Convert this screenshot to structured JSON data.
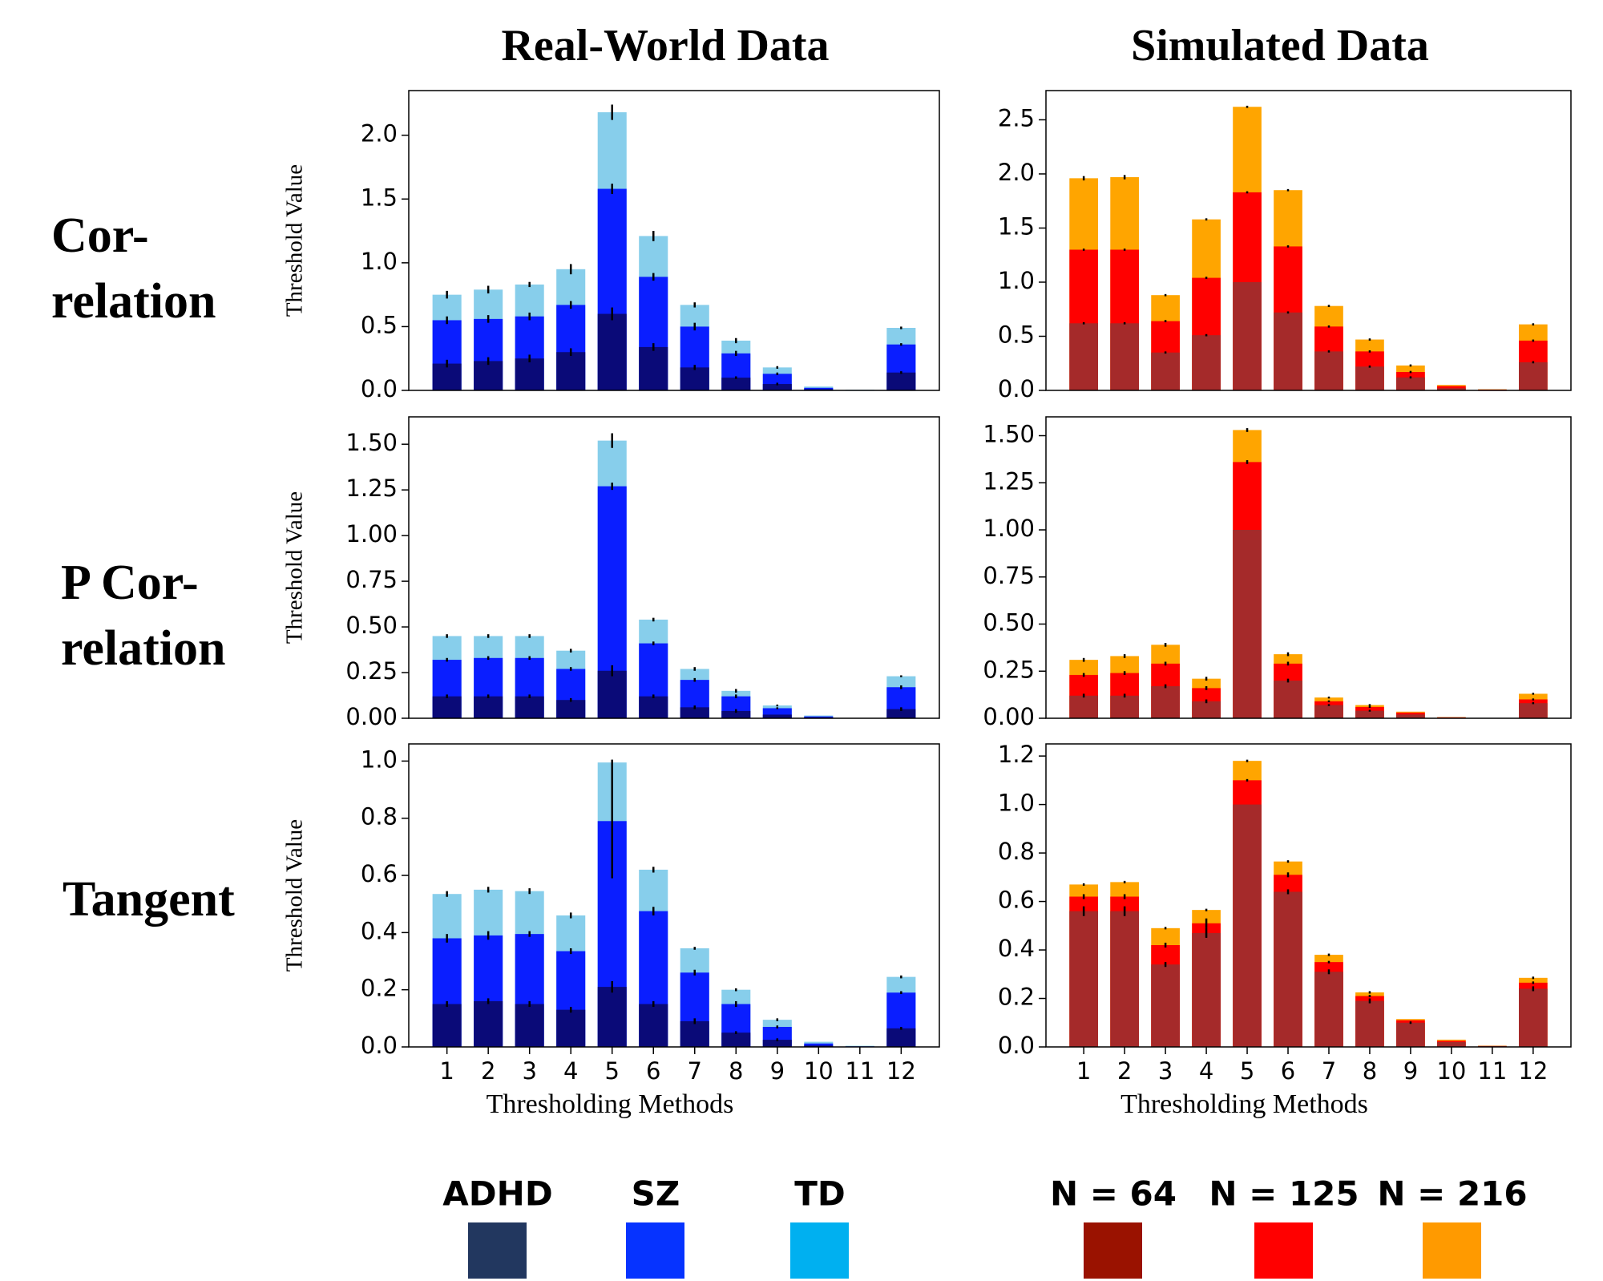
{
  "titles": [
    "Real-World Data",
    "Simulated Data"
  ],
  "row_labels": [
    [
      "Cor-",
      "relation"
    ],
    [
      "P Cor-",
      "relation"
    ],
    [
      "Tangent"
    ]
  ],
  "legends": [
    {
      "items": [
        {
          "name": "ADHD",
          "color": "#22375f"
        },
        {
          "name": "SZ",
          "color": "#0633ff"
        },
        {
          "name": "TD",
          "color": "#00b0f0"
        }
      ]
    },
    {
      "items": [
        {
          "name": "N = 64",
          "color": "#9a1200"
        },
        {
          "name": "N = 125",
          "color": "#ff0000"
        },
        {
          "name": "N = 216",
          "color": "#ff9a00"
        }
      ]
    }
  ],
  "chart_data": [
    {
      "type": "bar",
      "ylabel": "Threshold Value",
      "ylim": [
        0,
        2.35
      ],
      "yticks": [
        {
          "value": 0,
          "label": "0.0"
        },
        0.5,
        {
          "value": 1,
          "label": "1.0"
        },
        1.5,
        {
          "value": 2,
          "label": "2.0"
        }
      ],
      "series": [
        {
          "color": "#0a0a78",
          "values": [
            0.21,
            0.23,
            0.25,
            0.3,
            0.6,
            0.34,
            0.18,
            0.1,
            0.05,
            0.01,
            0,
            0.14
          ],
          "errors": [
            0.03,
            0.03,
            0.03,
            0.03,
            0.05,
            0.03,
            0.02,
            0.01,
            0.01,
            0,
            0,
            0.01
          ]
        },
        {
          "color": "#0a1eff",
          "values": [
            0.55,
            0.56,
            0.58,
            0.67,
            1.58,
            0.89,
            0.5,
            0.29,
            0.13,
            0.02,
            0,
            0.36
          ],
          "errors": [
            0.03,
            0.03,
            0.03,
            0.03,
            0.04,
            0.03,
            0.03,
            0.02,
            0.01,
            0,
            0,
            0.01
          ]
        },
        {
          "color": "#87ceeb",
          "values": [
            0.75,
            0.79,
            0.83,
            0.95,
            2.18,
            1.21,
            0.67,
            0.39,
            0.18,
            0.03,
            0.005,
            0.49
          ],
          "errors": [
            0.03,
            0.03,
            0.02,
            0.04,
            0.06,
            0.04,
            0.02,
            0.02,
            0.01,
            0,
            0,
            0.01
          ]
        }
      ]
    },
    {
      "type": "bar",
      "ylim": [
        0,
        2.77
      ],
      "yticks": [
        {
          "value": 0,
          "label": "0.0"
        },
        0.5,
        {
          "value": 1,
          "label": "1.0"
        },
        1.5,
        {
          "value": 2,
          "label": "2.0"
        },
        2.5
      ],
      "series": [
        {
          "color": "#a52a2a",
          "values": [
            0.62,
            0.62,
            0.35,
            0.51,
            1.0,
            0.72,
            0.36,
            0.22,
            0.12,
            0.02,
            0.005,
            0.26
          ],
          "errors": [
            0.01,
            0.01,
            0.01,
            0.01,
            0,
            0.01,
            0.01,
            0.01,
            0.01,
            0,
            0,
            0.01
          ]
        },
        {
          "color": "#ff0000",
          "values": [
            1.3,
            1.3,
            0.64,
            1.04,
            1.83,
            1.33,
            0.59,
            0.36,
            0.17,
            0.04,
            0.008,
            0.46
          ],
          "errors": [
            0.01,
            0.01,
            0.01,
            0.01,
            0.01,
            0.01,
            0.01,
            0.01,
            0.01,
            0,
            0,
            0.01
          ]
        },
        {
          "color": "#ffa500",
          "values": [
            1.96,
            1.97,
            0.88,
            1.58,
            2.62,
            1.85,
            0.78,
            0.47,
            0.23,
            0.05,
            0.01,
            0.61
          ],
          "errors": [
            0.02,
            0.02,
            0.01,
            0.01,
            0.01,
            0.01,
            0.01,
            0.01,
            0.01,
            0,
            0,
            0.01
          ]
        }
      ]
    },
    {
      "type": "bar",
      "ylabel": "Threshold Value",
      "ylim": [
        0,
        1.65
      ],
      "yticks": [
        {
          "value": 0,
          "label": "0.00"
        },
        0.25,
        {
          "value": 0.5,
          "label": "0.50"
        },
        0.75,
        {
          "value": 1,
          "label": "1.00"
        },
        1.25,
        {
          "value": 1.5,
          "label": "1.50"
        }
      ],
      "series": [
        {
          "color": "#0a0a78",
          "values": [
            0.12,
            0.12,
            0.12,
            0.1,
            0.26,
            0.12,
            0.06,
            0.04,
            0.02,
            0.005,
            0,
            0.05
          ],
          "errors": [
            0.01,
            0.01,
            0.01,
            0.01,
            0.03,
            0.01,
            0.01,
            0.01,
            0,
            0,
            0,
            0.01
          ]
        },
        {
          "color": "#0a1eff",
          "values": [
            0.32,
            0.33,
            0.33,
            0.27,
            1.27,
            0.41,
            0.21,
            0.12,
            0.055,
            0.01,
            0,
            0.17
          ],
          "errors": [
            0.01,
            0.01,
            0.01,
            0.01,
            0.02,
            0.01,
            0.01,
            0.01,
            0.005,
            0,
            0,
            0.01
          ]
        },
        {
          "color": "#87ceeb",
          "values": [
            0.45,
            0.45,
            0.45,
            0.37,
            1.52,
            0.54,
            0.27,
            0.15,
            0.07,
            0.015,
            0.002,
            0.23
          ],
          "errors": [
            0.01,
            0.01,
            0.01,
            0.01,
            0.04,
            0.01,
            0.01,
            0.01,
            0.005,
            0,
            0,
            0.005
          ]
        }
      ]
    },
    {
      "type": "bar",
      "ylim": [
        0,
        1.6
      ],
      "yticks": [
        {
          "value": 0,
          "label": "0.00"
        },
        0.25,
        {
          "value": 0.5,
          "label": "0.50"
        },
        0.75,
        {
          "value": 1,
          "label": "1.00"
        },
        1.25,
        {
          "value": 1.5,
          "label": "1.50"
        }
      ],
      "series": [
        {
          "color": "#a52a2a",
          "values": [
            0.12,
            0.12,
            0.17,
            0.09,
            1.0,
            0.2,
            0.07,
            0.04,
            0.02,
            0.003,
            0,
            0.08
          ],
          "errors": [
            0.01,
            0.01,
            0.01,
            0.01,
            0,
            0.01,
            0.005,
            0.005,
            0,
            0,
            0,
            0.005
          ]
        },
        {
          "color": "#ff0000",
          "values": [
            0.23,
            0.24,
            0.29,
            0.16,
            1.36,
            0.29,
            0.09,
            0.06,
            0.03,
            0.005,
            0,
            0.1
          ],
          "errors": [
            0.01,
            0.01,
            0.01,
            0.01,
            0.01,
            0.01,
            0.005,
            0.005,
            0,
            0,
            0,
            0.005
          ]
        },
        {
          "color": "#ffa500",
          "values": [
            0.31,
            0.33,
            0.39,
            0.21,
            1.53,
            0.34,
            0.11,
            0.07,
            0.035,
            0.006,
            0,
            0.13
          ],
          "errors": [
            0.01,
            0.01,
            0.01,
            0.01,
            0.01,
            0.01,
            0.005,
            0.005,
            0,
            0,
            0,
            0.005
          ]
        }
      ]
    },
    {
      "type": "bar",
      "ylabel": "Threshold Value",
      "xlabel": "Thresholding Methods",
      "ylim": [
        0,
        1.06
      ],
      "categories": [
        "1",
        "2",
        "3",
        "4",
        "5",
        "6",
        "7",
        "8",
        "9",
        "10",
        "11",
        "12"
      ],
      "yticks": [
        {
          "value": 0,
          "label": "0.0"
        },
        0.2,
        0.4,
        0.6,
        0.8,
        {
          "value": 1,
          "label": "1.0"
        }
      ],
      "series": [
        {
          "color": "#0a0a78",
          "values": [
            0.15,
            0.16,
            0.15,
            0.13,
            0.21,
            0.15,
            0.09,
            0.05,
            0.025,
            0.005,
            0,
            0.065
          ],
          "errors": [
            0.01,
            0.01,
            0.01,
            0.01,
            0.02,
            0.01,
            0.01,
            0.005,
            0.005,
            0,
            0,
            0.005
          ]
        },
        {
          "color": "#0a1eff",
          "values": [
            0.38,
            0.39,
            0.395,
            0.335,
            0.79,
            0.475,
            0.26,
            0.15,
            0.07,
            0.012,
            0.002,
            0.19
          ],
          "errors": [
            0.015,
            0.015,
            0.01,
            0.01,
            0.2,
            0.015,
            0.01,
            0.01,
            0.005,
            0,
            0,
            0.005
          ]
        },
        {
          "color": "#87ceeb",
          "values": [
            0.535,
            0.55,
            0.545,
            0.46,
            0.995,
            0.62,
            0.345,
            0.2,
            0.095,
            0.018,
            0.004,
            0.245
          ],
          "errors": [
            0.01,
            0.01,
            0.01,
            0.01,
            0.01,
            0.01,
            0.005,
            0.005,
            0.005,
            0,
            0,
            0.005
          ]
        }
      ]
    },
    {
      "type": "bar",
      "xlabel": "Thresholding Methods",
      "ylim": [
        0,
        1.25
      ],
      "categories": [
        "1",
        "2",
        "3",
        "4",
        "5",
        "6",
        "7",
        "8",
        "9",
        "10",
        "11",
        "12"
      ],
      "yticks": [
        {
          "value": 0,
          "label": "0.0"
        },
        0.2,
        0.4,
        0.6,
        0.8,
        {
          "value": 1,
          "label": "1.0"
        },
        1.2
      ],
      "series": [
        {
          "color": "#a52a2a",
          "values": [
            0.56,
            0.56,
            0.34,
            0.47,
            1.0,
            0.64,
            0.31,
            0.19,
            0.1,
            0.02,
            0.003,
            0.24
          ],
          "errors": [
            0.02,
            0.02,
            0.01,
            0.02,
            0,
            0.01,
            0.01,
            0.01,
            0.005,
            0,
            0,
            0.01
          ]
        },
        {
          "color": "#ff0000",
          "values": [
            0.62,
            0.62,
            0.42,
            0.51,
            1.1,
            0.71,
            0.35,
            0.21,
            0.11,
            0.025,
            0.004,
            0.265
          ],
          "errors": [
            0.01,
            0.01,
            0.01,
            0.02,
            0.005,
            0.01,
            0.005,
            0.005,
            0,
            0,
            0,
            0.005
          ]
        },
        {
          "color": "#ffa500",
          "values": [
            0.67,
            0.68,
            0.49,
            0.565,
            1.18,
            0.765,
            0.38,
            0.225,
            0.115,
            0.03,
            0.005,
            0.285
          ],
          "errors": [
            0.005,
            0.005,
            0.005,
            0.005,
            0.005,
            0.005,
            0.005,
            0.005,
            0,
            0,
            0,
            0.005
          ]
        }
      ]
    }
  ]
}
